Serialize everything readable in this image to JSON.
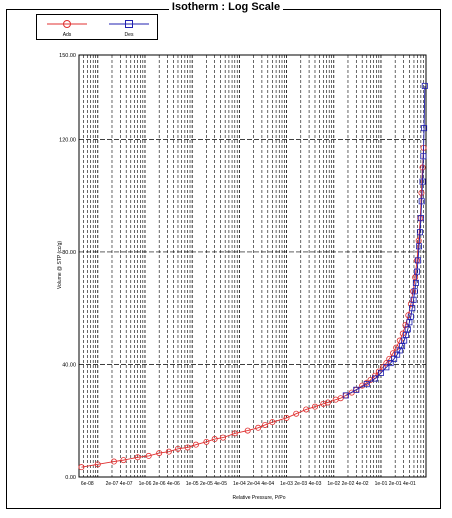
{
  "chart_data": {
    "type": "scatter",
    "title": "Isotherm :   Log Scale",
    "xlabel": "Relative Pressure, P/Po",
    "ylabel": "Volume @ STP (cc/g)",
    "x_scale": "log",
    "xlim": [
      4e-08,
      0.9
    ],
    "ylim": [
      0,
      150
    ],
    "yticks": [
      0,
      40,
      80,
      120,
      150
    ],
    "ytick_labels": [
      "0.00",
      "40.00",
      "80.00",
      "120.00",
      "150.00"
    ],
    "xtick_labels": [
      "6e-08",
      "2e-07",
      "4e-07",
      "1e-06",
      "2e-06",
      "4e-06",
      "1e-05",
      "2e-05",
      "4e-05",
      "1e-04",
      "2e-04",
      "4e-04",
      "1e-03",
      "2e-03",
      "4e-03",
      "1e-02",
      "2e-02",
      "4e-02",
      "1e-01",
      "2e-01",
      "4e-01"
    ],
    "grid": true,
    "legend_position": "top-left",
    "series": [
      {
        "name": "Ads",
        "marker": "circle",
        "color": "#e03030",
        "points": [
          [
            4.5e-08,
            3.5
          ],
          [
            1e-07,
            4.5
          ],
          [
            2.2e-07,
            5.5
          ],
          [
            3.5e-07,
            6.0
          ],
          [
            7e-07,
            7.0
          ],
          [
            1.2e-06,
            7.5
          ],
          [
            2e-06,
            8.5
          ],
          [
            3.2e-06,
            9.0
          ],
          [
            5e-06,
            10.0
          ],
          [
            8e-06,
            10.5
          ],
          [
            1.2e-05,
            11.5
          ],
          [
            2e-05,
            12.5
          ],
          [
            3e-05,
            13.5
          ],
          [
            4.5e-05,
            14.0
          ],
          [
            8e-05,
            15.5
          ],
          [
            0.00015,
            16.5
          ],
          [
            0.00025,
            17.5
          ],
          [
            0.00035,
            18.5
          ],
          [
            0.0005,
            19.5
          ],
          [
            0.001,
            21.0
          ],
          [
            0.0016,
            22.5
          ],
          [
            0.0026,
            24.0
          ],
          [
            0.004,
            25.0
          ],
          [
            0.006,
            26.0
          ],
          [
            0.0075,
            26.5
          ],
          [
            0.011,
            27.5
          ],
          [
            0.014,
            28.0
          ],
          [
            0.018,
            29.0
          ],
          [
            0.024,
            30.0
          ],
          [
            0.03,
            31.0
          ],
          [
            0.04,
            32.5
          ],
          [
            0.05,
            33.5
          ],
          [
            0.06,
            34.5
          ],
          [
            0.075,
            36.0
          ],
          [
            0.09,
            37.5
          ],
          [
            0.11,
            39.0
          ],
          [
            0.13,
            40.5
          ],
          [
            0.15,
            42.0
          ],
          [
            0.18,
            44.0
          ],
          [
            0.21,
            46.0
          ],
          [
            0.25,
            48.5
          ],
          [
            0.29,
            51.0
          ],
          [
            0.33,
            54.0
          ],
          [
            0.38,
            57.5
          ],
          [
            0.43,
            61.5
          ],
          [
            0.48,
            66.0
          ],
          [
            0.53,
            71.0
          ],
          [
            0.58,
            77.0
          ],
          [
            0.63,
            84.0
          ],
          [
            0.68,
            92.0
          ],
          [
            0.72,
            101.0
          ],
          [
            0.76,
            110.0
          ],
          [
            0.8,
            117.0
          ]
        ]
      },
      {
        "name": "Des",
        "marker": "square",
        "color": "#2020b0",
        "points": [
          [
            0.85,
            139.0
          ],
          [
            0.82,
            124.0
          ],
          [
            0.79,
            114.0
          ],
          [
            0.76,
            105.0
          ],
          [
            0.73,
            98.0
          ],
          [
            0.7,
            92.0
          ],
          [
            0.67,
            87.0
          ],
          [
            0.64,
            82.0
          ],
          [
            0.61,
            77.0
          ],
          [
            0.58,
            73.0
          ],
          [
            0.55,
            69.0
          ],
          [
            0.52,
            66.0
          ],
          [
            0.49,
            63.0
          ],
          [
            0.46,
            60.0
          ],
          [
            0.43,
            57.0
          ],
          [
            0.4,
            55.0
          ],
          [
            0.37,
            52.5
          ],
          [
            0.34,
            50.5
          ],
          [
            0.31,
            48.5
          ],
          [
            0.28,
            46.5
          ],
          [
            0.25,
            45.0
          ],
          [
            0.22,
            43.5
          ],
          [
            0.19,
            42.0
          ],
          [
            0.16,
            40.5
          ],
          [
            0.13,
            39.0
          ],
          [
            0.1,
            37.0
          ],
          [
            0.075,
            35.0
          ],
          [
            0.05,
            33.0
          ],
          [
            0.03,
            31.0
          ],
          [
            0.018,
            29.0
          ]
        ]
      }
    ]
  }
}
